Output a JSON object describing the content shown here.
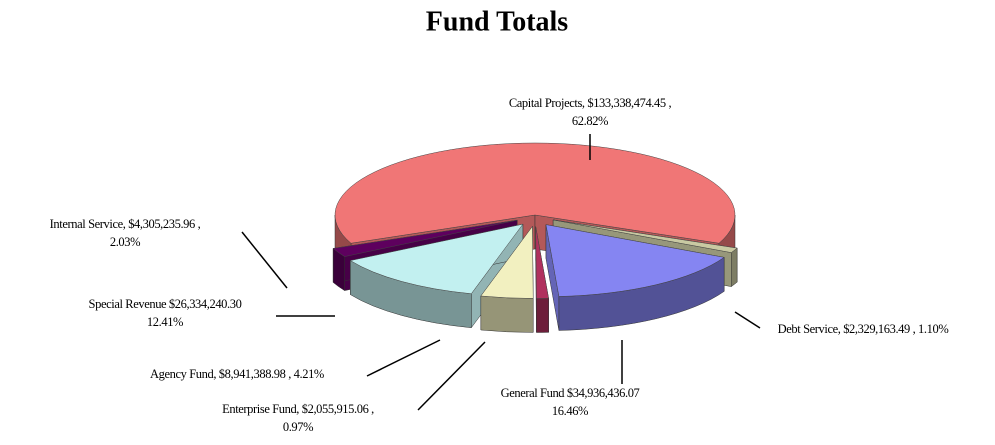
{
  "chart_data": {
    "type": "pie3d",
    "title": "Fund Totals",
    "categories": [
      "Capital Projects",
      "Debt Service",
      "General Fund",
      "Enterprise Fund",
      "Agency Fund",
      "Special Revenue",
      "Internal Service"
    ],
    "values": [
      133338474.45,
      2329163.49,
      34936436.07,
      2055915.06,
      8941388.98,
      26334240.3,
      4305235.96
    ],
    "labels": [
      [
        "Capital Projects, $133,338,474.45 ,",
        "62.82%"
      ],
      [
        "Debt Service, $2,329,163.49 , 1.10%"
      ],
      [
        "General Fund $34,936,436.07",
        "16.46%"
      ],
      [
        "Enterprise Fund, $2,055,915.06 ,",
        "0.97%"
      ],
      [
        "Agency Fund, $8,941,388.98 , 4.21%"
      ],
      [
        "Special Revenue $26,334,240.30",
        "12.41%"
      ],
      [
        "Internal Service, $4,305,235.96 ,",
        "2.03%"
      ]
    ],
    "colors": [
      "#f07676",
      "#c9c9a2",
      "#8585f2",
      "#b0305e",
      "#f2f0c0",
      "#c2f0f0",
      "#5e005e"
    ]
  }
}
